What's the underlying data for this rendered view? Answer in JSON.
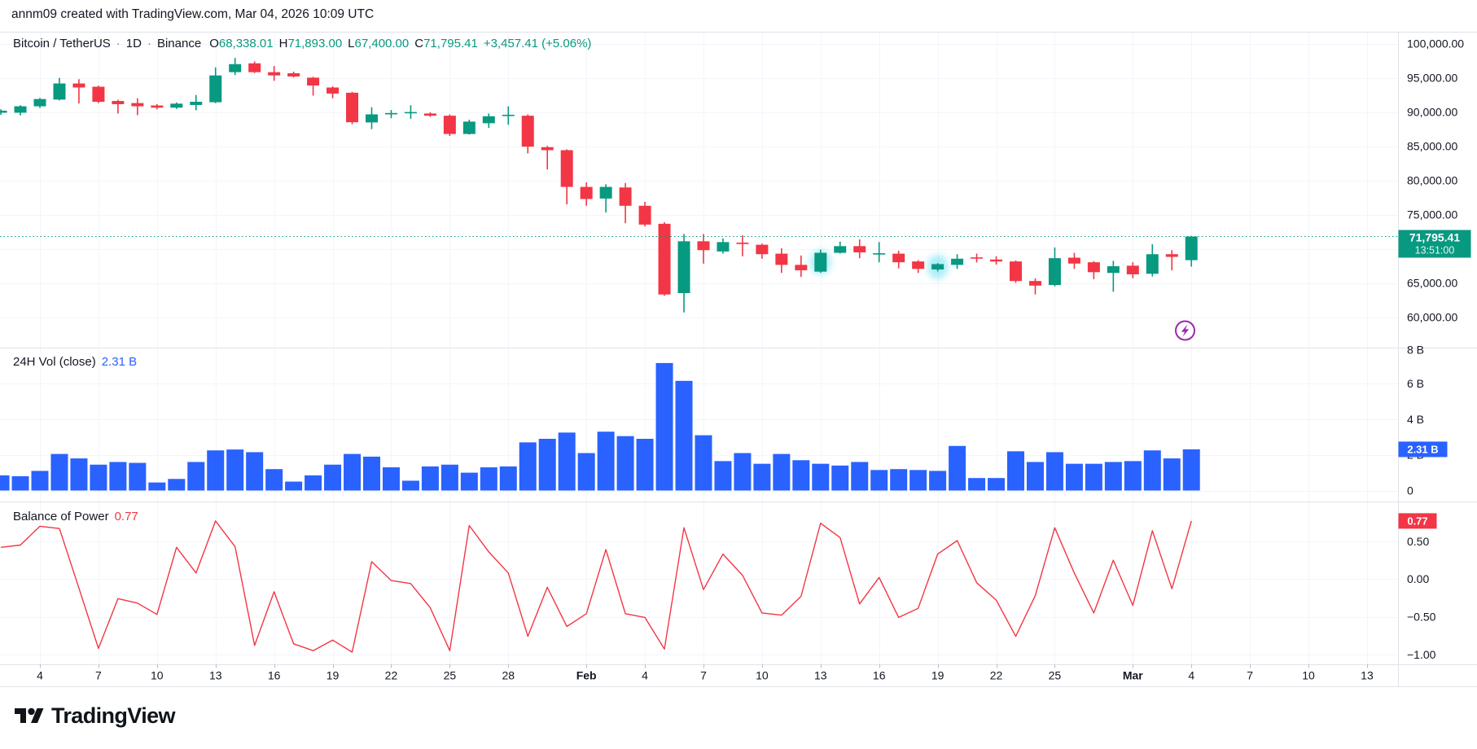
{
  "header": {
    "credit": "annm09 created with TradingView.com, Mar 04, 2026 10:09 UTC"
  },
  "colors": {
    "up": "#089981",
    "down": "#f23645",
    "volume_bar": "#2962ff",
    "bop_line": "#f23645",
    "text": "#131722",
    "grid": "#f2f5fa",
    "divider": "#e0e3eb",
    "price_badge_bg": "#089981",
    "volume_badge_bg": "#2962ff",
    "bop_badge_bg": "#f23645",
    "lightning_purple": "#9c27b0",
    "candle_highlight": "rgba(34,211,238,0.38)"
  },
  "main_legend": {
    "symbol": "Bitcoin / TetherUS",
    "sep": "·",
    "interval": "1D",
    "exchange": "Binance",
    "o_label": "O",
    "o": "68,338.01",
    "h_label": "H",
    "h": "71,893.00",
    "l_label": "L",
    "l": "67,400.00",
    "c_label": "C",
    "c": "71,795.41",
    "change": "+3,457.41 (+5.06%)"
  },
  "volume_legend": {
    "title": "24H Vol (close)",
    "value": "2.31 B"
  },
  "bop_legend": {
    "title": "Balance of Power",
    "value": "0.77"
  },
  "logo": {
    "text": "TradingView"
  },
  "time_axis": {
    "tick_day_offsets": [
      0,
      3,
      6,
      9,
      12,
      15,
      18,
      21,
      24,
      28,
      31,
      34,
      37,
      40,
      43,
      46,
      49,
      52,
      56,
      59,
      62,
      65,
      68
    ],
    "tick_labels": [
      "4",
      "7",
      "10",
      "13",
      "16",
      "19",
      "22",
      "25",
      "28",
      "Feb",
      "4",
      "7",
      "10",
      "13",
      "16",
      "19",
      "22",
      "25",
      "Mar",
      "4",
      "7",
      "10",
      "13"
    ],
    "bold_ticks": [
      9,
      18
    ]
  },
  "chart_data": [
    {
      "type": "candlestick",
      "title": "Bitcoin / TetherUS · 1D · Binance",
      "ylabel": "price (USDT)",
      "ylim": [
        55584,
        101798
      ],
      "yticks": {
        "values": [
          100000,
          95000,
          90000,
          85000,
          80000,
          75000,
          70000,
          65000,
          60000
        ],
        "labels": [
          "100,000.00",
          "95,000.00",
          "90,000.00",
          "85,000.00",
          "80,000.00",
          "75,000.00",
          "70,000.00",
          "65,000.00",
          "60,000.00"
        ]
      },
      "last": {
        "price": 71795.41,
        "price_label": "71,795.41",
        "time_label": "13:51:00"
      },
      "highlighted_bars": [
        42,
        48
      ],
      "dates": [
        "Jan 2",
        "Jan 3",
        "Jan 4",
        "Jan 5",
        "Jan 6",
        "Jan 7",
        "Jan 8",
        "Jan 9",
        "Jan 10",
        "Jan 11",
        "Jan 12",
        "Jan 13",
        "Jan 14",
        "Jan 15",
        "Jan 16",
        "Jan 17",
        "Jan 18",
        "Jan 19",
        "Jan 20",
        "Jan 21",
        "Jan 22",
        "Jan 23",
        "Jan 24",
        "Jan 25",
        "Jan 26",
        "Jan 27",
        "Jan 28",
        "Jan 29",
        "Jan 30",
        "Jan 31",
        "Feb 1",
        "Feb 2",
        "Feb 3",
        "Feb 4",
        "Feb 5",
        "Feb 6",
        "Feb 7",
        "Feb 8",
        "Feb 9",
        "Feb 10",
        "Feb 11",
        "Feb 12",
        "Feb 13",
        "Feb 14",
        "Feb 15",
        "Feb 16",
        "Feb 17",
        "Feb 18",
        "Feb 19",
        "Feb 20",
        "Feb 21",
        "Feb 22",
        "Feb 23",
        "Feb 24",
        "Feb 25",
        "Feb 26",
        "Feb 27",
        "Feb 28",
        "Mar 1",
        "Mar 2",
        "Mar 3",
        "Mar 4"
      ],
      "ohlc": [
        [
          89900,
          90400,
          89600,
          90200
        ],
        [
          89900,
          91000,
          89500,
          90840
        ],
        [
          90840,
          92050,
          90600,
          91900
        ],
        [
          91820,
          95000,
          91700,
          94175
        ],
        [
          94175,
          94800,
          91250,
          93585
        ],
        [
          93700,
          93850,
          91300,
          91500
        ],
        [
          91615,
          91800,
          89780,
          91145
        ],
        [
          91310,
          92015,
          89540,
          90840
        ],
        [
          90955,
          91150,
          90400,
          90640
        ],
        [
          90640,
          91400,
          90450,
          91225
        ],
        [
          91030,
          92490,
          90250,
          91500
        ],
        [
          91430,
          96530,
          91300,
          95350
        ],
        [
          95830,
          97910,
          95400,
          97000
        ],
        [
          97120,
          97400,
          95700,
          95830
        ],
        [
          95825,
          96730,
          94560,
          95355
        ],
        [
          95670,
          95900,
          95060,
          95200
        ],
        [
          95025,
          95150,
          92400,
          93880
        ],
        [
          93585,
          93750,
          92016,
          92700
        ],
        [
          92820,
          92950,
          88220,
          88504
        ],
        [
          88480,
          90700,
          87500,
          89660
        ],
        [
          89700,
          90300,
          89100,
          89850
        ],
        [
          89850,
          91000,
          89000,
          90000
        ],
        [
          89780,
          89950,
          89300,
          89460
        ],
        [
          89460,
          89650,
          86500,
          86790
        ],
        [
          86790,
          88870,
          86700,
          88600
        ],
        [
          88360,
          89780,
          87690,
          89380
        ],
        [
          89450,
          90840,
          88130,
          89600
        ],
        [
          89460,
          89650,
          83950,
          84940
        ],
        [
          84860,
          85050,
          81600,
          84420
        ],
        [
          84420,
          84550,
          76490,
          79050
        ],
        [
          79050,
          79710,
          76290,
          77280
        ],
        [
          77350,
          79440,
          75310,
          79050
        ],
        [
          78970,
          79635,
          73740,
          76290
        ],
        [
          76290,
          76880,
          73270,
          73540
        ],
        [
          73660,
          73894,
          63130,
          63320
        ],
        [
          63520,
          72160,
          60690,
          71100
        ],
        [
          71100,
          72160,
          67840,
          69800
        ],
        [
          69610,
          71500,
          69300,
          70980
        ],
        [
          70900,
          71964,
          68900,
          70700
        ],
        [
          70590,
          70750,
          68550,
          69210
        ],
        [
          69290,
          70080,
          66470,
          67650
        ],
        [
          67650,
          69020,
          65880,
          66860
        ],
        [
          66660,
          69880,
          66500,
          69410
        ],
        [
          69410,
          71060,
          69300,
          70390
        ],
        [
          70390,
          71370,
          68620,
          69480
        ],
        [
          69250,
          70980,
          68030,
          69350
        ],
        [
          69290,
          69720,
          67140,
          68030
        ],
        [
          68150,
          68350,
          66470,
          67060
        ],
        [
          66980,
          67900,
          66700,
          67760
        ],
        [
          67650,
          69210,
          67060,
          68550
        ],
        [
          68750,
          69300,
          68000,
          68600
        ],
        [
          68430,
          68900,
          67700,
          68150
        ],
        [
          68150,
          68300,
          65010,
          65290
        ],
        [
          65290,
          65680,
          63320,
          64620
        ],
        [
          64700,
          70200,
          64500,
          68630
        ],
        [
          68700,
          69400,
          67060,
          67840
        ],
        [
          68030,
          68200,
          65560,
          66580
        ],
        [
          66470,
          68230,
          63720,
          67450
        ],
        [
          67530,
          68030,
          65680,
          66270
        ],
        [
          66350,
          70670,
          65960,
          69210
        ],
        [
          69210,
          69800,
          66860,
          68820
        ],
        [
          68338.01,
          71893,
          67400,
          71795.41
        ]
      ]
    },
    {
      "type": "bar",
      "title": "24H Vol (close)",
      "unit": "billions",
      "ylim": [
        0,
        8.03
      ],
      "yticks": {
        "values": [
          8,
          6,
          4,
          2,
          0
        ],
        "labels": [
          "8 B",
          "6 B",
          "4 B",
          "2 B",
          "0"
        ]
      },
      "last_value_label": "2.31 B",
      "values": [
        0.85,
        0.8,
        1.1,
        2.05,
        1.8,
        1.45,
        1.6,
        1.55,
        0.45,
        0.65,
        1.6,
        2.25,
        2.3,
        2.15,
        1.2,
        0.5,
        0.85,
        1.45,
        2.05,
        1.9,
        1.3,
        0.55,
        1.35,
        1.45,
        1.0,
        1.3,
        1.35,
        2.7,
        2.9,
        3.25,
        2.1,
        3.3,
        3.05,
        2.9,
        7.15,
        6.15,
        3.1,
        1.65,
        2.1,
        1.5,
        2.05,
        1.7,
        1.5,
        1.4,
        1.6,
        1.15,
        1.2,
        1.15,
        1.1,
        2.5,
        0.7,
        0.7,
        2.2,
        1.6,
        2.15,
        1.5,
        1.5,
        1.6,
        1.65,
        2.25,
        1.8,
        2.31
      ]
    },
    {
      "type": "line",
      "title": "Balance of Power",
      "ylim": [
        -1.13,
        1.03
      ],
      "yticks": {
        "values": [
          0.5,
          0,
          -0.5,
          -1
        ],
        "labels": [
          "0.50",
          "0.00",
          "−0.50",
          "−1.00"
        ]
      },
      "last_value_label": "0.77",
      "values": [
        0.42,
        0.45,
        0.7,
        0.67,
        -0.12,
        -0.92,
        -0.26,
        -0.32,
        -0.47,
        0.42,
        0.08,
        0.77,
        0.43,
        -0.88,
        -0.17,
        -0.86,
        -0.95,
        -0.81,
        -0.97,
        0.23,
        -0.02,
        -0.06,
        -0.38,
        -0.95,
        0.71,
        0.36,
        0.08,
        -0.76,
        -0.11,
        -0.63,
        -0.46,
        0.39,
        -0.46,
        -0.51,
        -0.93,
        0.68,
        -0.14,
        0.33,
        0.05,
        -0.45,
        -0.48,
        -0.23,
        0.74,
        0.55,
        -0.33,
        0.02,
        -0.51,
        -0.39,
        0.33,
        0.51,
        -0.05,
        -0.28,
        -0.76,
        -0.22,
        0.68,
        0.08,
        -0.45,
        0.25,
        -0.35,
        0.64,
        -0.13,
        0.77
      ]
    }
  ]
}
